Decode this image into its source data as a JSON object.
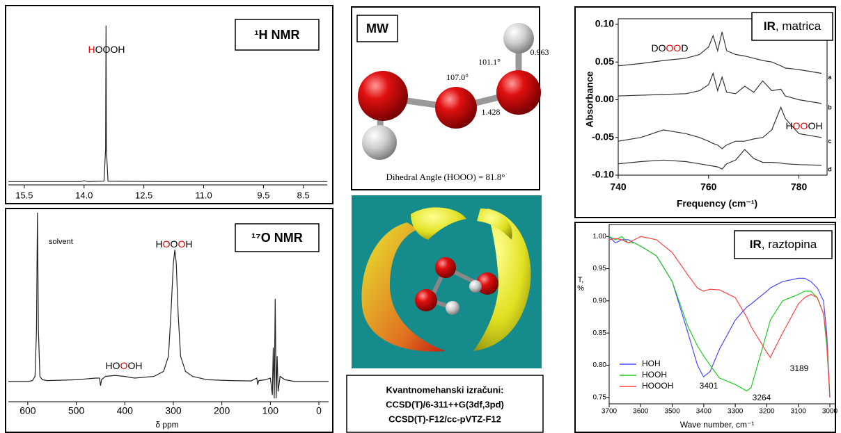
{
  "chart_data": [
    {
      "type": "line",
      "title": [
        {
          "text": "¹H NMR",
          "bold": true
        }
      ],
      "xlim": [
        15.9,
        7.9
      ],
      "ylim": [
        -2,
        100
      ],
      "xticks": [
        15.5,
        {
          "value": 14.0,
          "label": "14.0"
        },
        12.5,
        {
          "value": 11.0,
          "label": "11.0"
        },
        9.5,
        8.5
      ],
      "x": [
        15.9,
        14.1,
        14.0,
        13.9,
        13.5,
        13.46,
        13.45,
        13.44,
        13.4,
        12.0,
        7.9
      ],
      "series": [
        {
          "color": "#222222",
          "values": [
            0,
            0,
            0.5,
            0,
            0.3,
            20,
            95,
            20,
            0.3,
            0,
            0
          ]
        }
      ],
      "annotations": [
        {
          "parts": [
            {
              "text": "H",
              "color": "#e00000"
            },
            {
              "text": "OOOH",
              "color": "#000000"
            }
          ]
        }
      ]
    },
    {
      "type": "line",
      "title": [
        {
          "text": "¹⁷O NMR",
          "bold": true
        }
      ],
      "xlabel": "δ ppm",
      "xlim": [
        640,
        -20
      ],
      "ylim": [
        -12,
        100
      ],
      "xticks": [
        600,
        500,
        400,
        300,
        200,
        100,
        0
      ],
      "x": [
        640,
        600,
        590,
        585,
        582,
        580,
        578,
        575,
        570,
        560,
        500,
        460,
        452,
        450,
        448,
        440,
        420,
        400,
        380,
        340,
        320,
        310,
        305,
        300,
        297,
        294,
        290,
        285,
        275,
        260,
        230,
        180,
        140,
        128,
        126,
        124,
        110,
        100,
        96,
        94,
        92,
        90,
        88,
        86,
        84,
        80,
        70,
        50,
        0,
        -20
      ],
      "series": [
        {
          "color": "#222222",
          "values": [
            0,
            0,
            0.5,
            3,
            30,
            100,
            30,
            3,
            1,
            0.5,
            1,
            2,
            2,
            -2.5,
            1,
            3,
            3.6,
            3,
            2,
            3,
            6,
            15,
            40,
            70,
            78,
            70,
            40,
            15,
            6,
            3,
            1,
            0.5,
            0.3,
            2,
            -2,
            0.5,
            1,
            2,
            -8,
            20,
            -10,
            49,
            -10,
            15,
            -6,
            3,
            1,
            0,
            0,
            0
          ]
        }
      ],
      "annotations": [
        {
          "parts": [
            {
              "text": "solvent",
              "color": "#000000"
            }
          ]
        },
        {
          "parts": [
            {
              "text": "H",
              "color": "#000000"
            },
            {
              "text": "O",
              "color": "#e00000"
            },
            {
              "text": "O",
              "color": "#000000"
            },
            {
              "text": "O",
              "color": "#e00000"
            },
            {
              "text": "H",
              "color": "#000000"
            }
          ]
        },
        {
          "parts": [
            {
              "text": "HO",
              "color": "#000000"
            },
            {
              "text": "O",
              "color": "#e00000"
            },
            {
              "text": "OH",
              "color": "#000000"
            }
          ]
        }
      ]
    },
    {
      "type": "line",
      "title": [
        {
          "text": "IR",
          "bold": true
        },
        {
          "text": ", matrica",
          "bold": false
        }
      ],
      "xlabel": "Frequency (cm⁻¹)",
      "ylabel": "Absorbance",
      "xlim": [
        740,
        785
      ],
      "ylim": [
        -0.1,
        0.1
      ],
      "xticks": [
        740,
        760,
        780
      ],
      "yticks": [
        {
          "value": 0.1,
          "label": "0.10"
        },
        0.05,
        {
          "value": 0,
          "label": "0.00"
        },
        -0.05,
        {
          "value": -0.1,
          "label": "-0.10"
        }
      ],
      "x": [
        740,
        745,
        750,
        755,
        758,
        760,
        761,
        762,
        763,
        764,
        766,
        768,
        770,
        772,
        774,
        776,
        777,
        780,
        785
      ],
      "series": [
        {
          "name": "a",
          "color": "#333333",
          "values": [
            0.045,
            0.048,
            0.052,
            0.055,
            0.06,
            0.07,
            0.085,
            0.065,
            0.09,
            0.065,
            0.06,
            0.058,
            0.055,
            0.052,
            0.05,
            0.045,
            0.042,
            0.04,
            0.035
          ]
        },
        {
          "name": "b",
          "color": "#333333",
          "values": [
            0.005,
            0.006,
            0.007,
            0.008,
            0.012,
            0.02,
            0.035,
            0.012,
            0.03,
            0.01,
            0.008,
            0.018,
            0.01,
            0.025,
            0.012,
            0.014,
            0.005,
            0.0,
            -0.005
          ]
        },
        {
          "name": "c",
          "color": "#333333",
          "values": [
            -0.055,
            -0.05,
            -0.04,
            -0.045,
            -0.05,
            -0.055,
            -0.058,
            -0.06,
            -0.065,
            -0.06,
            -0.055,
            -0.055,
            -0.052,
            -0.05,
            -0.04,
            -0.01,
            -0.025,
            -0.045,
            -0.05
          ]
        },
        {
          "name": "d",
          "color": "#333333",
          "values": [
            -0.085,
            -0.082,
            -0.08,
            -0.082,
            -0.085,
            -0.087,
            -0.088,
            -0.089,
            -0.092,
            -0.085,
            -0.08,
            -0.066,
            -0.078,
            -0.083,
            -0.083,
            -0.084,
            -0.085,
            -0.086,
            -0.087
          ]
        }
      ],
      "annotations": [
        {
          "parts": [
            {
              "text": "DO",
              "color": "#000000"
            },
            {
              "text": "OO",
              "color": "#e00000"
            },
            {
              "text": "D",
              "color": "#000000"
            }
          ]
        },
        {
          "parts": [
            {
              "text": "H",
              "color": "#000000"
            },
            {
              "text": "OO",
              "color": "#e00000"
            },
            {
              "text": "OH",
              "color": "#000000"
            }
          ]
        }
      ]
    },
    {
      "type": "line",
      "title": [
        {
          "text": "IR",
          "bold": true
        },
        {
          "text": ", raztopina",
          "bold": false
        }
      ],
      "xlabel": "Wave number, cm⁻¹",
      "ylabel": [
        "T,",
        "%"
      ],
      "xlim": [
        3700,
        3000
      ],
      "ylim": [
        0.74,
        1.01
      ],
      "xticks": [
        3700,
        3600,
        3500,
        3400,
        3300,
        3200,
        3100,
        3000
      ],
      "yticks": [
        0.75,
        {
          "value": 0.8,
          "label": "0.80"
        },
        0.85,
        {
          "value": 0.9,
          "label": "0.90"
        },
        0.95,
        {
          "value": 1.0,
          "label": "1.00"
        }
      ],
      "x": [
        3700,
        3680,
        3660,
        3640,
        3620,
        3600,
        3550,
        3500,
        3450,
        3420,
        3401,
        3380,
        3350,
        3300,
        3264,
        3250,
        3200,
        3189,
        3150,
        3100,
        3080,
        3060,
        3040,
        3020,
        3010,
        3000
      ],
      "series": [
        {
          "name": "HOH",
          "color": "#4a4aff",
          "values": [
            1.0,
            0.99,
            0.995,
            0.995,
            0.99,
            0.985,
            0.97,
            0.93,
            0.85,
            0.8,
            0.782,
            0.79,
            0.825,
            0.87,
            0.89,
            0.895,
            0.915,
            0.92,
            0.93,
            0.935,
            0.935,
            0.93,
            0.92,
            0.9,
            0.85,
            0.75
          ]
        },
        {
          "name": "HOOH",
          "color": "#22cc22",
          "values": [
            1.0,
            0.995,
            1.0,
            0.99,
            0.99,
            0.985,
            0.97,
            0.93,
            0.86,
            0.83,
            0.815,
            0.8,
            0.78,
            0.77,
            0.76,
            0.765,
            0.85,
            0.87,
            0.9,
            0.91,
            0.915,
            0.915,
            0.905,
            0.88,
            0.83,
            0.75
          ]
        },
        {
          "name": "HOOOH",
          "color": "#ff4040",
          "values": [
            0.995,
            0.997,
            0.995,
            0.99,
            0.995,
            1.0,
            0.995,
            0.975,
            0.94,
            0.92,
            0.915,
            0.918,
            0.917,
            0.905,
            0.875,
            0.86,
            0.82,
            0.812,
            0.85,
            0.895,
            0.905,
            0.91,
            0.905,
            0.88,
            0.84,
            0.75
          ]
        }
      ],
      "annotations": [
        {
          "parts": [
            {
              "text": "3401",
              "color": "#000000"
            }
          ]
        },
        {
          "parts": [
            {
              "text": "3264",
              "color": "#000000"
            }
          ]
        },
        {
          "parts": [
            {
              "text": "3189",
              "color": "#000000"
            }
          ]
        }
      ]
    }
  ],
  "mw_panel": {
    "label": "MW",
    "annotations": [
      "107.0°",
      "101.1°",
      "0.963",
      "1.428"
    ],
    "caption": "Dihedral Angle (HOOO) = 81.8°"
  },
  "computation": {
    "lines": [
      "Kvantnomehanski izračuni:",
      "CCSD(T)/6-311++G(3df,3pd)",
      "CCSD(T)-F12/cc-pVTZ-F12"
    ]
  }
}
